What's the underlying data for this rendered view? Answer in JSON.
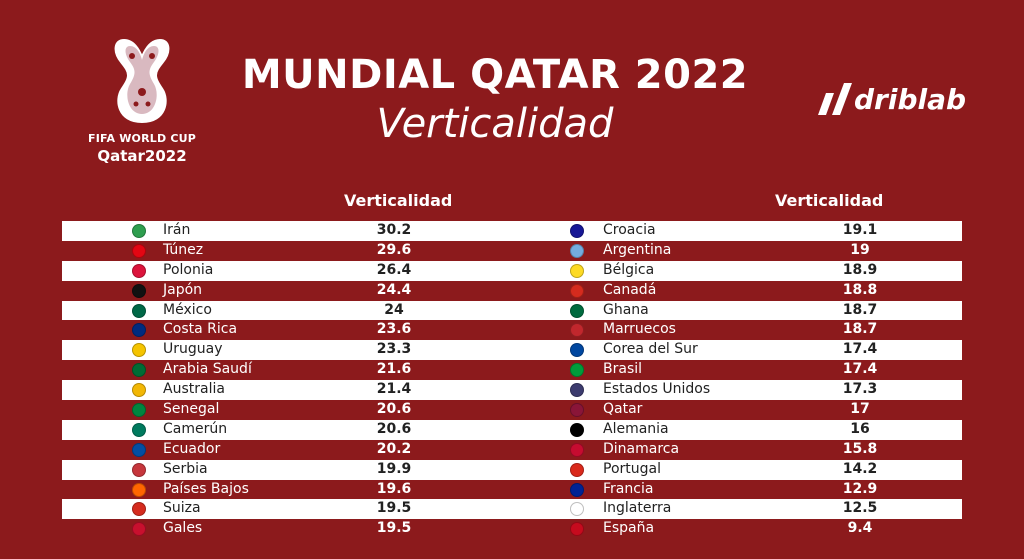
{
  "logo": {
    "line1": "FIFA WORLD CUP",
    "line2": "Qatar2022"
  },
  "title": "MUNDIAL QATAR 2022",
  "subtitle": "Verticalidad",
  "brand": "driblab",
  "chart_data": {
    "type": "table",
    "columns": [
      "Verticalidad",
      "Verticalidad"
    ],
    "left": [
      {
        "team": "Irán",
        "value": "30.2",
        "flag": "#2e9e4f"
      },
      {
        "team": "Túnez",
        "value": "29.6",
        "flag": "#e30613"
      },
      {
        "team": "Polonia",
        "value": "26.4",
        "flag": "#dc143c"
      },
      {
        "team": "Japón",
        "value": "24.4",
        "flag": "#111111"
      },
      {
        "team": "México",
        "value": "24",
        "flag": "#006847"
      },
      {
        "team": "Costa Rica",
        "value": "23.6",
        "flag": "#002b7f"
      },
      {
        "team": "Uruguay",
        "value": "23.3",
        "flag": "#f5c400"
      },
      {
        "team": "Arabia Saudí",
        "value": "21.6",
        "flag": "#006c35"
      },
      {
        "team": "Australia",
        "value": "21.4",
        "flag": "#f2b705"
      },
      {
        "team": "Senegal",
        "value": "20.6",
        "flag": "#00853f"
      },
      {
        "team": "Camerún",
        "value": "20.6",
        "flag": "#007a5e"
      },
      {
        "team": "Ecuador",
        "value": "20.2",
        "flag": "#034ea2"
      },
      {
        "team": "Serbia",
        "value": "19.9",
        "flag": "#c6363c"
      },
      {
        "team": "Países Bajos",
        "value": "19.6",
        "flag": "#ff6600"
      },
      {
        "team": "Suiza",
        "value": "19.5",
        "flag": "#d52b1e"
      },
      {
        "team": "Gales",
        "value": "19.5",
        "flag": "#c8102e"
      }
    ],
    "right": [
      {
        "team": "Croacia",
        "value": "19.1",
        "flag": "#171796"
      },
      {
        "team": "Argentina",
        "value": "19",
        "flag": "#74acdf"
      },
      {
        "team": "Bélgica",
        "value": "18.9",
        "flag": "#fdda24"
      },
      {
        "team": "Canadá",
        "value": "18.8",
        "flag": "#d52b1e"
      },
      {
        "team": "Ghana",
        "value": "18.7",
        "flag": "#006b3f"
      },
      {
        "team": "Marruecos",
        "value": "18.7",
        "flag": "#c1272d"
      },
      {
        "team": "Corea del Sur",
        "value": "17.4",
        "flag": "#0047a0"
      },
      {
        "team": "Brasil",
        "value": "17.4",
        "flag": "#009c3b"
      },
      {
        "team": "Estados Unidos",
        "value": "17.3",
        "flag": "#3c3b6e"
      },
      {
        "team": "Qatar",
        "value": "17",
        "flag": "#8a1538"
      },
      {
        "team": "Alemania",
        "value": "16",
        "flag": "#000000"
      },
      {
        "team": "Dinamarca",
        "value": "15.8",
        "flag": "#c60c30"
      },
      {
        "team": "Portugal",
        "value": "14.2",
        "flag": "#da291c"
      },
      {
        "team": "Francia",
        "value": "12.9",
        "flag": "#002395"
      },
      {
        "team": "Inglaterra",
        "value": "12.5",
        "flag": "#ffffff"
      },
      {
        "team": "España",
        "value": "9.4",
        "flag": "#c60b1e"
      }
    ]
  }
}
